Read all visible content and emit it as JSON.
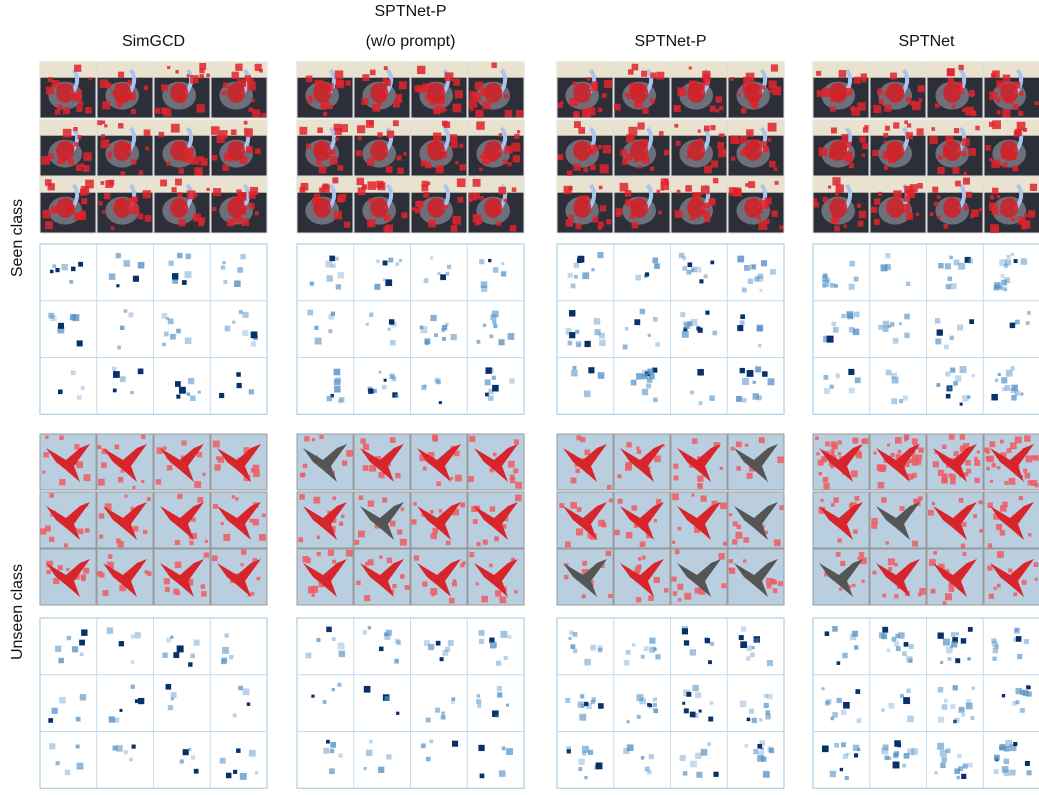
{
  "columns": [
    {
      "lines": [
        "SimGCD"
      ]
    },
    {
      "lines": [
        "SPTNet-P",
        "(w/o prompt)"
      ]
    },
    {
      "lines": [
        "SPTNet-P"
      ]
    },
    {
      "lines": [
        "SPTNet"
      ]
    }
  ],
  "rows": [
    "Seen class",
    "Unseen class"
  ]
}
